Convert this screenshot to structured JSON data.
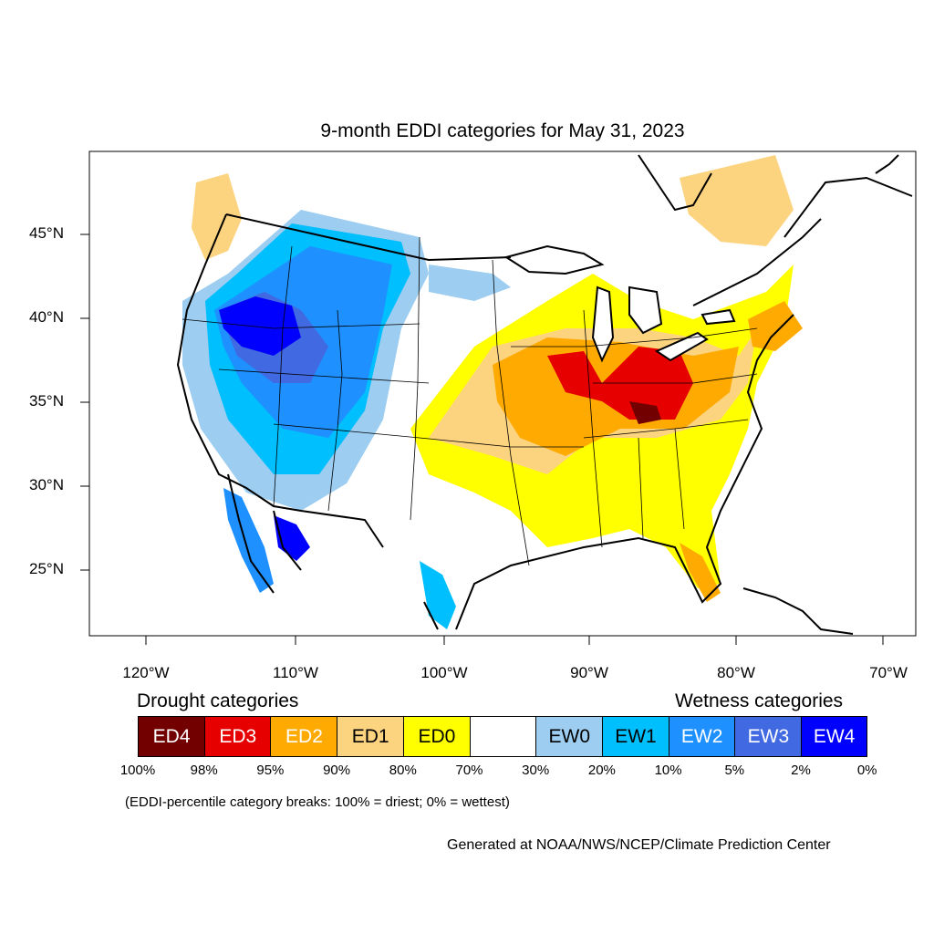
{
  "title": "9-month EDDI categories for May 31, 2023",
  "axes": {
    "lat_labels": [
      "45°N",
      "40°N",
      "35°N",
      "30°N",
      "25°N"
    ],
    "lon_labels": [
      "120°W",
      "110°W",
      "100°W",
      "90°W",
      "80°W",
      "70°W"
    ]
  },
  "legend": {
    "drought_heading": "Drought categories",
    "wetness_heading": "Wetness categories",
    "categories": [
      {
        "label": "ED4",
        "color": "#730000",
        "text_color": "#ffffff"
      },
      {
        "label": "ED3",
        "color": "#e60000",
        "text_color": "#ffffff"
      },
      {
        "label": "ED2",
        "color": "#ffaa00",
        "text_color": "#ffffff"
      },
      {
        "label": "ED1",
        "color": "#fcd37f",
        "text_color": "#000000"
      },
      {
        "label": "ED0",
        "color": "#ffff00",
        "text_color": "#000000"
      },
      {
        "label": "",
        "color": "#ffffff",
        "text_color": "#000000"
      },
      {
        "label": "EW0",
        "color": "#9dcdf0",
        "text_color": "#000000"
      },
      {
        "label": "EW1",
        "color": "#00bfff",
        "text_color": "#000000"
      },
      {
        "label": "EW2",
        "color": "#1e90ff",
        "text_color": "#ffffff"
      },
      {
        "label": "EW3",
        "color": "#4169e1",
        "text_color": "#ffffff"
      },
      {
        "label": "EW4",
        "color": "#0000ff",
        "text_color": "#ffffff"
      }
    ],
    "breaks": [
      "100%",
      "98%",
      "95%",
      "90%",
      "80%",
      "70%",
      "30%",
      "20%",
      "10%",
      "5%",
      "2%",
      "0%"
    ],
    "note": "(EDDI-percentile category breaks: 100% = driest; 0% = wettest)"
  },
  "credit": "Generated at NOAA/NWS/NCEP/Climate Prediction Center"
}
